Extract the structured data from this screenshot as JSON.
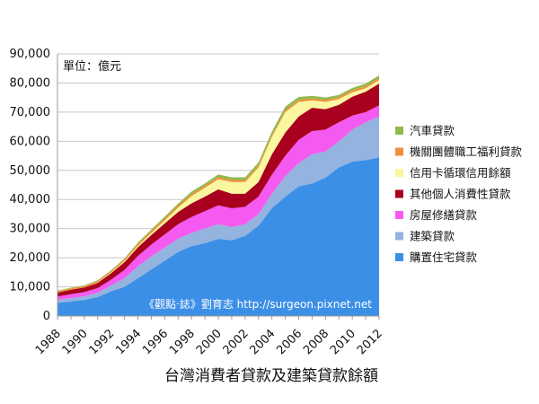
{
  "chart_data": {
    "type": "area",
    "stacked": true,
    "title": "台灣消費者貸款及建築貸款餘額",
    "unit_label": "單位：億元",
    "credit": "《觀點‧誌》劉育志 http://surgeon.pixnet.net",
    "ylim": [
      0,
      90000
    ],
    "y_ticks": [
      0,
      10000,
      20000,
      30000,
      40000,
      50000,
      60000,
      70000,
      80000,
      90000
    ],
    "y_tick_labels": [
      "0",
      "10,000",
      "20,000",
      "30,000",
      "40,000",
      "50,000",
      "60,000",
      "70,000",
      "80,000",
      "90,000"
    ],
    "x_tick_labels": [
      "1988",
      "1990",
      "1992",
      "1994",
      "1996",
      "1998",
      "2000",
      "2002",
      "2004",
      "2006",
      "2008",
      "2010",
      "2012"
    ],
    "x": [
      1988,
      1989,
      1990,
      1991,
      1992,
      1993,
      1994,
      1995,
      1996,
      1997,
      1998,
      1999,
      2000,
      2001,
      2002,
      2003,
      2004,
      2005,
      2006,
      2007,
      2008,
      2009,
      2010,
      2011,
      2012
    ],
    "grid": {
      "horizontal": true,
      "vertical": false
    },
    "legend_position": "right",
    "series": [
      {
        "name": "購置住宅貸款",
        "color": "#3b8fe6",
        "values": [
          4500,
          5000,
          5500,
          6500,
          8500,
          10000,
          13000,
          16000,
          19000,
          22000,
          24000,
          25000,
          26500,
          26000,
          27500,
          31000,
          37000,
          41000,
          44500,
          45500,
          47500,
          51000,
          53000,
          53500,
          54500
        ]
      },
      {
        "name": "建築貸款",
        "color": "#94b3de",
        "values": [
          1000,
          1200,
          1300,
          1500,
          2000,
          3000,
          4000,
          4500,
          4500,
          4500,
          4500,
          5000,
          5000,
          4500,
          4000,
          4000,
          5000,
          7000,
          8000,
          10000,
          9000,
          9000,
          11000,
          13000,
          14000
        ]
      },
      {
        "name": "房屋修繕貸款",
        "color": "#f55af0",
        "values": [
          1200,
          1300,
          1400,
          1600,
          2000,
          2800,
          3600,
          4000,
          4500,
          5000,
          5500,
          6000,
          6500,
          6500,
          6000,
          6000,
          6500,
          7000,
          8000,
          8000,
          7500,
          6500,
          4800,
          3500,
          3800
        ]
      },
      {
        "name": "其他個人消費性貸款",
        "color": "#a8001e",
        "values": [
          1300,
          1500,
          1600,
          1800,
          2200,
          2700,
          3000,
          3300,
          3800,
          4200,
          4700,
          5000,
          5500,
          5000,
          4500,
          5000,
          7000,
          8000,
          8000,
          8000,
          7000,
          6000,
          6500,
          7000,
          7500
        ]
      },
      {
        "name": "信用卡循環信用餘額",
        "color": "#fbf6a0",
        "values": [
          0,
          0,
          0,
          200,
          300,
          400,
          500,
          700,
          1000,
          1500,
          2500,
          3000,
          3500,
          4000,
          4000,
          5000,
          6000,
          7000,
          5000,
          2500,
          2500,
          2000,
          1500,
          1200,
          1200
        ]
      },
      {
        "name": "機關團體職工福利貸款",
        "color": "#f0903c",
        "values": [
          500,
          500,
          500,
          500,
          500,
          600,
          700,
          700,
          700,
          700,
          700,
          700,
          700,
          700,
          700,
          700,
          700,
          700,
          700,
          700,
          700,
          700,
          700,
          700,
          700
        ]
      },
      {
        "name": "汽車貸款",
        "color": "#8fba4c",
        "values": [
          200,
          200,
          200,
          200,
          200,
          300,
          400,
          500,
          600,
          700,
          800,
          800,
          900,
          900,
          900,
          1000,
          1100,
          1200,
          1000,
          900,
          800,
          700,
          800,
          900,
          900
        ]
      }
    ]
  }
}
